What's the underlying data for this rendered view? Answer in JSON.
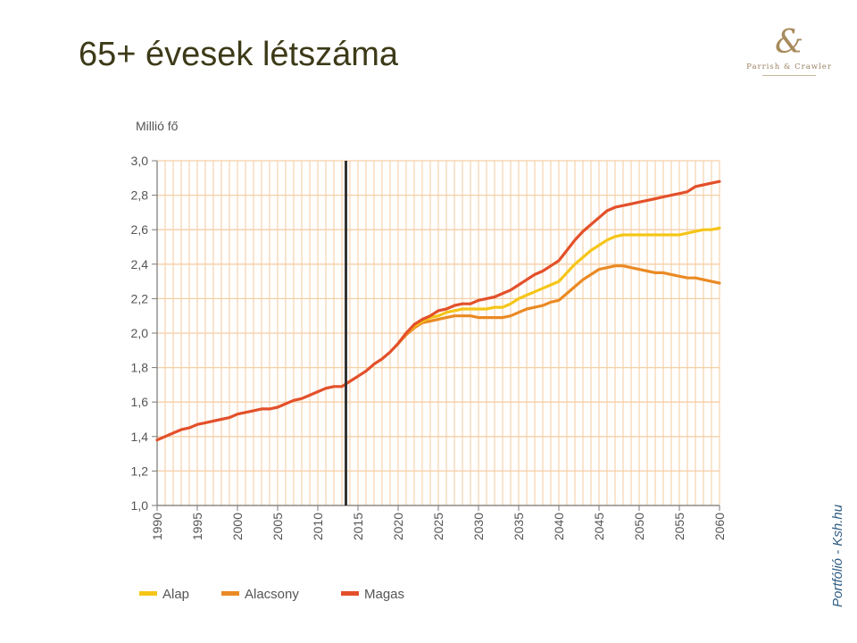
{
  "slide": {
    "title": "65+ évesek létszáma",
    "logo_mark": "&",
    "logo_text": "Parrish & Crawler",
    "source": "Portfólió - Ksh.hu"
  },
  "colors": {
    "grid": "#f5cfa6",
    "axis": "#7a7a7a",
    "marker": "#333333",
    "title": "#3d3a18",
    "source": "#2e5d84"
  },
  "chart_data": {
    "type": "line",
    "title": "",
    "ylabel": "Millió fő",
    "xlabel": "",
    "xlim": [
      1990,
      2060
    ],
    "ylim": [
      1.0,
      3.0
    ],
    "grid": true,
    "legend_position": "bottom-left",
    "x_ticks": [
      "1990",
      "1995",
      "2000",
      "2005",
      "2010",
      "2015",
      "2020",
      "2025",
      "2030",
      "2035",
      "2040",
      "2045",
      "2050",
      "2055",
      "2060"
    ],
    "y_ticks": [
      "1,0",
      "1,2",
      "1,4",
      "1,6",
      "1,8",
      "2,0",
      "2,2",
      "2,4",
      "2,6",
      "2,8",
      "3,0"
    ],
    "vertical_marker_x": 2013.5,
    "series": [
      {
        "name": "Magas",
        "color": "#e3502a",
        "x": [
          1990,
          1991,
          1992,
          1993,
          1994,
          1995,
          1996,
          1997,
          1998,
          1999,
          2000,
          2001,
          2002,
          2003,
          2004,
          2005,
          2006,
          2007,
          2008,
          2009,
          2010,
          2011,
          2012,
          2013,
          2014,
          2015,
          2016,
          2017,
          2018,
          2019,
          2020,
          2021,
          2022,
          2023,
          2024,
          2025,
          2026,
          2027,
          2028,
          2029,
          2030,
          2031,
          2032,
          2033,
          2034,
          2035,
          2036,
          2037,
          2038,
          2039,
          2040,
          2041,
          2042,
          2043,
          2044,
          2045,
          2046,
          2047,
          2048,
          2049,
          2050,
          2051,
          2052,
          2053,
          2054,
          2055,
          2056,
          2057,
          2058,
          2059,
          2060
        ],
        "values": [
          1.38,
          1.4,
          1.42,
          1.44,
          1.45,
          1.47,
          1.48,
          1.49,
          1.5,
          1.51,
          1.53,
          1.54,
          1.55,
          1.56,
          1.56,
          1.57,
          1.59,
          1.61,
          1.62,
          1.64,
          1.66,
          1.68,
          1.69,
          1.69,
          1.72,
          1.75,
          1.78,
          1.82,
          1.85,
          1.89,
          1.94,
          2.0,
          2.05,
          2.08,
          2.1,
          2.13,
          2.14,
          2.16,
          2.17,
          2.17,
          2.19,
          2.2,
          2.21,
          2.23,
          2.25,
          2.28,
          2.31,
          2.34,
          2.36,
          2.39,
          2.42,
          2.48,
          2.54,
          2.59,
          2.63,
          2.67,
          2.71,
          2.73,
          2.74,
          2.75,
          2.76,
          2.77,
          2.78,
          2.79,
          2.8,
          2.81,
          2.82,
          2.85,
          2.86,
          2.87,
          2.88
        ]
      },
      {
        "name": "Alap",
        "color": "#f5c518",
        "x": [
          2020,
          2021,
          2022,
          2023,
          2024,
          2025,
          2026,
          2027,
          2028,
          2029,
          2030,
          2031,
          2032,
          2033,
          2034,
          2035,
          2036,
          2037,
          2038,
          2039,
          2040,
          2041,
          2042,
          2043,
          2044,
          2045,
          2046,
          2047,
          2048,
          2049,
          2050,
          2051,
          2052,
          2053,
          2054,
          2055,
          2056,
          2057,
          2058,
          2059,
          2060
        ],
        "values": [
          1.94,
          2.0,
          2.04,
          2.07,
          2.09,
          2.1,
          2.12,
          2.13,
          2.14,
          2.14,
          2.14,
          2.14,
          2.15,
          2.15,
          2.17,
          2.2,
          2.22,
          2.24,
          2.26,
          2.28,
          2.3,
          2.35,
          2.4,
          2.44,
          2.48,
          2.51,
          2.54,
          2.56,
          2.57,
          2.57,
          2.57,
          2.57,
          2.57,
          2.57,
          2.57,
          2.57,
          2.58,
          2.59,
          2.6,
          2.6,
          2.61
        ]
      },
      {
        "name": "Alacsony",
        "color": "#ea8a24",
        "x": [
          2020,
          2021,
          2022,
          2023,
          2024,
          2025,
          2026,
          2027,
          2028,
          2029,
          2030,
          2031,
          2032,
          2033,
          2034,
          2035,
          2036,
          2037,
          2038,
          2039,
          2040,
          2041,
          2042,
          2043,
          2044,
          2045,
          2046,
          2047,
          2048,
          2049,
          2050,
          2051,
          2052,
          2053,
          2054,
          2055,
          2056,
          2057,
          2058,
          2059,
          2060
        ],
        "values": [
          1.94,
          1.99,
          2.03,
          2.06,
          2.07,
          2.08,
          2.09,
          2.1,
          2.1,
          2.1,
          2.09,
          2.09,
          2.09,
          2.09,
          2.1,
          2.12,
          2.14,
          2.15,
          2.16,
          2.18,
          2.19,
          2.23,
          2.27,
          2.31,
          2.34,
          2.37,
          2.38,
          2.39,
          2.39,
          2.38,
          2.37,
          2.36,
          2.35,
          2.35,
          2.34,
          2.33,
          2.32,
          2.32,
          2.31,
          2.3,
          2.29
        ]
      }
    ],
    "legend": [
      "Alap",
      "Alacsony",
      "Magas"
    ]
  }
}
